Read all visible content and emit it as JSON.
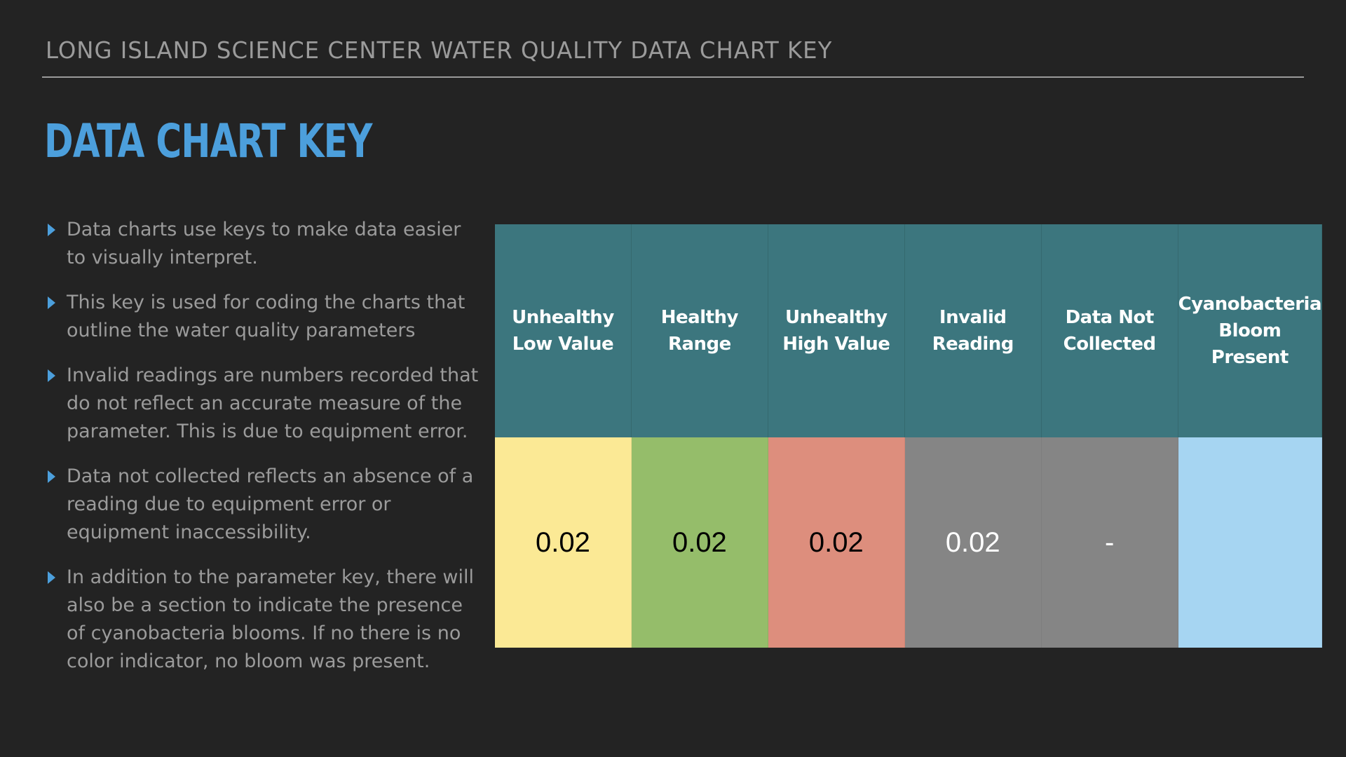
{
  "header": {
    "title": "LONG ISLAND SCIENCE CENTER WATER QUALITY DATA CHART KEY"
  },
  "slide": {
    "title": "DATA CHART KEY"
  },
  "bullets": [
    "Data charts use keys to make data easier to visually interpret.",
    "This key is used for coding the charts that outline the water quality parameters",
    "Invalid readings are numbers recorded that do not reflect an accurate measure of the parameter. This is due to equipment error.",
    "Data not collected reflects an absence of a reading due to equipment error or equipment inaccessibility.",
    "In addition to the parameter key, there will also be a section to indicate the presence of cyanobacteria blooms. If no there is no color indicator, no bloom was present."
  ],
  "key_table": {
    "columns": [
      {
        "label": "Unhealthy\nLow Value",
        "value": "0.02",
        "color": "#fbe995",
        "text_color": "#000000"
      },
      {
        "label": "Healthy\nRange",
        "value": "0.02",
        "color": "#95bd6a",
        "text_color": "#000000"
      },
      {
        "label": "Unhealthy\nHigh Value",
        "value": "0.02",
        "color": "#dd8e7d",
        "text_color": "#000000"
      },
      {
        "label": "Invalid\nReading",
        "value": "0.02",
        "color": "#858585",
        "text_color": "#ffffff"
      },
      {
        "label": "Data Not\nCollected",
        "value": "-",
        "color": "#858585",
        "text_color": "#ffffff"
      },
      {
        "label": "Cyanobacteria\nBloom Present",
        "value": "",
        "color": "#a6d5f2",
        "text_color": "#000000"
      }
    ],
    "header_color": "#3c767e"
  },
  "colors": {
    "background": "#232323",
    "accent": "#4c9fdc",
    "body_text": "#9b9b9b"
  }
}
